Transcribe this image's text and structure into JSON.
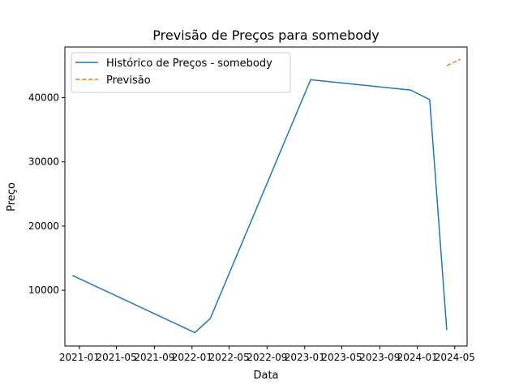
{
  "chart_data": {
    "type": "line",
    "title": "Previsão de Preços para somebody",
    "xlabel": "Data",
    "ylabel": "Preço",
    "x_scale": "date",
    "xlim": [
      "2020-11-15",
      "2024-06-10"
    ],
    "ylim": [
      1300,
      47900
    ],
    "x_ticks": [
      {
        "date": "2021-01-01",
        "label": "2021-01"
      },
      {
        "date": "2021-05-01",
        "label": "2021-05"
      },
      {
        "date": "2021-09-01",
        "label": "2021-09"
      },
      {
        "date": "2022-01-01",
        "label": "2022-01"
      },
      {
        "date": "2022-05-01",
        "label": "2022-05"
      },
      {
        "date": "2022-09-01",
        "label": "2022-09"
      },
      {
        "date": "2023-01-01",
        "label": "2023-01"
      },
      {
        "date": "2023-05-01",
        "label": "2023-05"
      },
      {
        "date": "2023-09-01",
        "label": "2023-09"
      },
      {
        "date": "2024-01-01",
        "label": "2024-01"
      },
      {
        "date": "2024-05-01",
        "label": "2024-05"
      }
    ],
    "y_ticks": [
      {
        "value": 10000,
        "label": "10000"
      },
      {
        "value": 20000,
        "label": "20000"
      },
      {
        "value": 30000,
        "label": "30000"
      },
      {
        "value": 40000,
        "label": "40000"
      }
    ],
    "grid": false,
    "legend_position": "top-left",
    "series": [
      {
        "name": "Histórico de Preços - somebody",
        "color": "#1f77b4",
        "style": "solid",
        "points": [
          {
            "x": "2020-12-10",
            "y": 12300
          },
          {
            "x": "2022-01-10",
            "y": 3400
          },
          {
            "x": "2022-03-01",
            "y": 5600
          },
          {
            "x": "2023-01-20",
            "y": 42800
          },
          {
            "x": "2023-12-10",
            "y": 41200
          },
          {
            "x": "2024-02-10",
            "y": 39700
          },
          {
            "x": "2024-04-05",
            "y": 3800
          }
        ]
      },
      {
        "name": "Previsão",
        "color": "#ff7f0e",
        "style": "dashed",
        "points": [
          {
            "x": "2024-04-05",
            "y": 45000
          },
          {
            "x": "2024-05-20",
            "y": 46000
          }
        ]
      }
    ]
  }
}
